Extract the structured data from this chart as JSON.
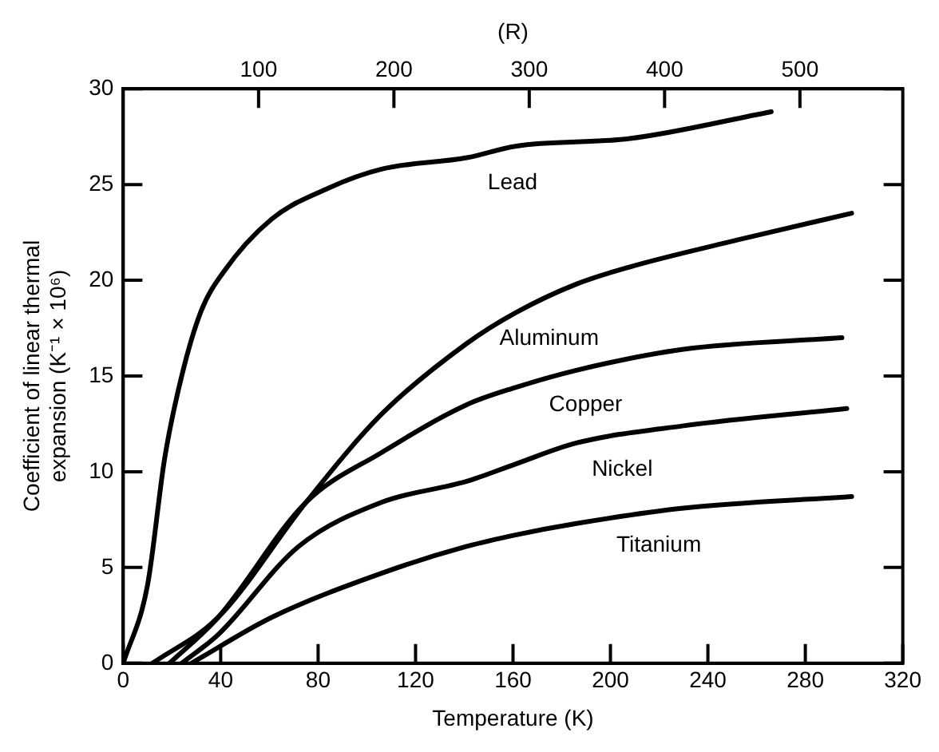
{
  "chart_data": {
    "type": "line",
    "xlabel": "Temperature (K)",
    "ylabel": "Coefficient of linear thermal\nexpansion (K⁻¹ × 10⁶)",
    "x2label": "(R)",
    "xlim": [
      0,
      320
    ],
    "xticks": [
      0,
      40,
      80,
      120,
      160,
      200,
      240,
      280,
      320
    ],
    "ylim": [
      0,
      30
    ],
    "yticks": [
      0,
      5,
      10,
      15,
      20,
      25,
      30
    ],
    "x2lim": [
      0,
      576
    ],
    "x2ticks": [
      100,
      200,
      300,
      400,
      500
    ],
    "legend": false,
    "marker": "none",
    "line_style": "solid",
    "series": [
      {
        "name": "Lead",
        "color": "#000000",
        "x": [
          0,
          10,
          17,
          24,
          32,
          41,
          61,
          84,
          106,
          141,
          161,
          208,
          266
        ],
        "values": [
          0,
          4.1,
          10.7,
          15,
          18.4,
          20.4,
          23.2,
          24.8,
          25.8,
          26.4,
          27,
          27.4,
          28.8
        ]
      },
      {
        "name": "Aluminum",
        "color": "#000000",
        "x": [
          12,
          39,
          75,
          106,
          141,
          161,
          186,
          208,
          252,
          299
        ],
        "values": [
          0,
          2.4,
          8.4,
          13,
          16.7,
          18.3,
          19.8,
          20.7,
          22.1,
          23.5
        ]
      },
      {
        "name": "Copper",
        "color": "#000000",
        "x": [
          19,
          39,
          75,
          106,
          141,
          161,
          186,
          230,
          295
        ],
        "values": [
          0,
          2.4,
          8.4,
          11,
          13.5,
          14.4,
          15.3,
          16.4,
          17
        ]
      },
      {
        "name": "Nickel",
        "color": "#000000",
        "x": [
          24,
          39,
          72,
          106,
          141,
          161,
          186,
          230,
          297
        ],
        "values": [
          0,
          1.5,
          6.1,
          8.4,
          9.5,
          10.4,
          11.5,
          12.4,
          13.3
        ]
      },
      {
        "name": "Titanium",
        "color": "#000000",
        "x": [
          28,
          61,
          106,
          141,
          161,
          186,
          230,
          299
        ],
        "values": [
          0,
          2.4,
          4.7,
          6.1,
          6.7,
          7.3,
          8.1,
          8.7
        ]
      }
    ]
  }
}
